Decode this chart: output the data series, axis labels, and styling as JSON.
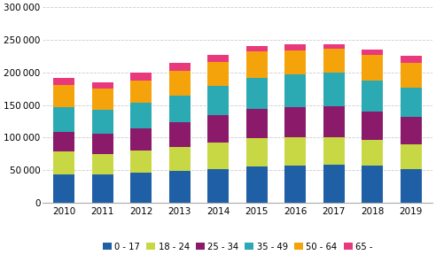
{
  "years": [
    2010,
    2011,
    2012,
    2013,
    2014,
    2015,
    2016,
    2017,
    2018,
    2019
  ],
  "series": {
    "0 - 17": [
      43000,
      44000,
      46000,
      49000,
      52000,
      55000,
      57000,
      58000,
      57000,
      52000
    ],
    "18 - 24": [
      36000,
      31000,
      34000,
      37000,
      40000,
      44000,
      43000,
      42000,
      40000,
      38000
    ],
    "25 - 34": [
      30000,
      31000,
      34000,
      38000,
      42000,
      45000,
      47000,
      48000,
      43000,
      42000
    ],
    "35 - 49": [
      38000,
      37000,
      39000,
      40000,
      45000,
      48000,
      50000,
      52000,
      47000,
      45000
    ],
    "50 - 64": [
      34000,
      32000,
      35000,
      38000,
      37000,
      40000,
      37000,
      37000,
      40000,
      37000
    ],
    "65 -": [
      10000,
      10000,
      11000,
      12000,
      11000,
      8000,
      9000,
      6000,
      8000,
      12000
    ]
  },
  "colors": {
    "0 - 17": "#1f5fa6",
    "18 - 24": "#c8d844",
    "25 - 34": "#8b1a6b",
    "35 - 49": "#2baab4",
    "50 - 64": "#f5a30a",
    "65 -": "#e8397d"
  },
  "ylim": [
    0,
    300000
  ],
  "yticks": [
    0,
    50000,
    100000,
    150000,
    200000,
    250000,
    300000
  ],
  "background_color": "#ffffff",
  "grid_color": "#cccccc",
  "bar_width": 0.55,
  "figsize": [
    4.92,
    2.88
  ],
  "dpi": 100
}
